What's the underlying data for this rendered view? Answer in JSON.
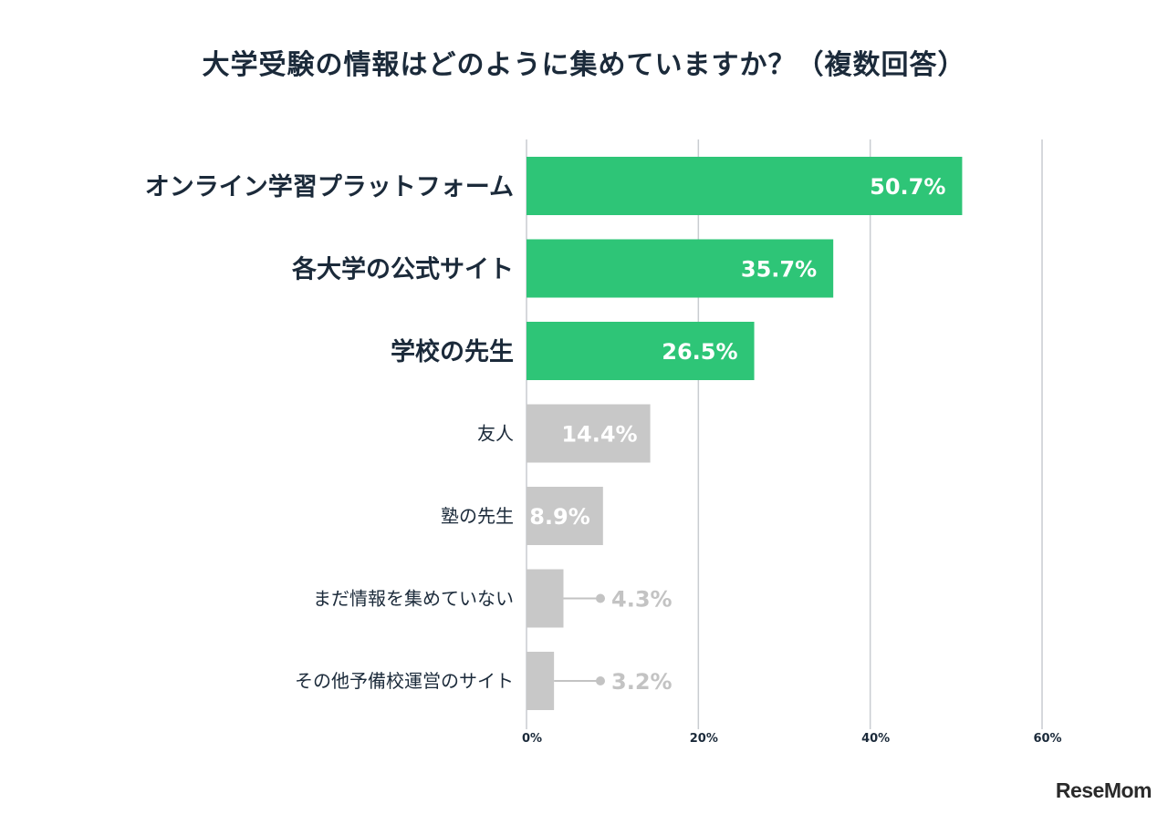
{
  "chart_data": {
    "type": "bar",
    "orientation": "horizontal",
    "title": "大学受験の情報はどのように集めていますか？（複数回答）",
    "categories": [
      "オンライン学習プラットフォーム",
      "各大学の公式サイト",
      "学校の先生",
      "友人",
      "塾の先生",
      "まだ情報を集めていない",
      "その他予備校運営のサイト"
    ],
    "values": [
      50.7,
      35.7,
      26.5,
      14.4,
      8.9,
      4.3,
      3.2
    ],
    "value_labels": [
      "50.7%",
      "35.7%",
      "26.5%",
      "14.4%",
      "8.9%",
      "4.3%",
      "3.2%"
    ],
    "highlighted": [
      true,
      true,
      true,
      false,
      false,
      false,
      false
    ],
    "xlim": [
      0,
      60
    ],
    "xticks": [
      0,
      20,
      40,
      60
    ],
    "xtick_labels": [
      "0%",
      "20%",
      "40%",
      "60%"
    ],
    "grid": true,
    "colors": {
      "highlight": "#2ec577",
      "other": "#c8c8c8",
      "grid": "#c9ccd1",
      "title": "#1b2a3a",
      "outside_label": "#c3c3c3"
    }
  },
  "watermark": "ReseMom"
}
